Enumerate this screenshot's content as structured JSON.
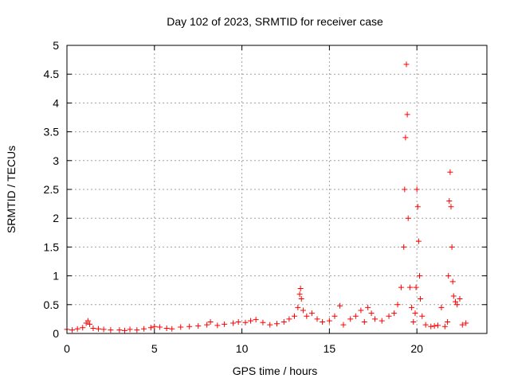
{
  "chart_data": {
    "type": "scatter",
    "title": "Day 102 of 2023, SRMTID for receiver case",
    "xlabel": "GPS time / hours",
    "ylabel": "SRMTID / TECUs",
    "xlim": [
      0,
      24
    ],
    "ylim": [
      0,
      5
    ],
    "x_ticks": [
      0,
      5,
      10,
      15,
      20
    ],
    "y_ticks": [
      0,
      0.5,
      1,
      1.5,
      2,
      2.5,
      3,
      3.5,
      4,
      4.5,
      5
    ],
    "x_tick_labels": [
      "0",
      "5",
      "10",
      "15",
      "20"
    ],
    "y_tick_labels": [
      "0",
      "0.5",
      "1",
      "1.5",
      "2",
      "2.5",
      "3",
      "3.5",
      "4",
      "4.5",
      "5"
    ],
    "grid": true,
    "marker": "+",
    "color": "#ff0000",
    "series": [
      {
        "name": "SRMTID",
        "x": [
          0.0,
          0.3,
          0.6,
          0.9,
          1.1,
          1.2,
          1.3,
          1.5,
          1.8,
          2.1,
          2.5,
          3.0,
          3.3,
          3.6,
          4.0,
          4.4,
          4.8,
          5.0,
          5.3,
          5.7,
          6.0,
          6.5,
          7.0,
          7.5,
          8.0,
          8.2,
          8.6,
          9.0,
          9.5,
          9.8,
          10.2,
          10.5,
          10.8,
          11.2,
          11.6,
          12.0,
          12.4,
          12.7,
          13.0,
          13.2,
          13.3,
          13.35,
          13.4,
          13.5,
          13.7,
          14.0,
          14.3,
          14.6,
          15.0,
          15.3,
          15.6,
          15.8,
          16.2,
          16.5,
          16.8,
          17.0,
          17.2,
          17.4,
          17.6,
          18.0,
          18.4,
          18.7,
          18.9,
          19.1,
          19.25,
          19.3,
          19.35,
          19.4,
          19.45,
          19.5,
          19.6,
          19.7,
          19.8,
          19.9,
          19.95,
          20.0,
          20.05,
          20.1,
          20.15,
          20.2,
          20.3,
          20.5,
          20.8,
          21.0,
          21.2,
          21.4,
          21.6,
          21.75,
          21.8,
          21.85,
          21.9,
          21.95,
          22.0,
          22.05,
          22.1,
          22.2,
          22.3,
          22.45,
          22.6,
          22.8
        ],
        "y": [
          0.07,
          0.06,
          0.08,
          0.1,
          0.18,
          0.22,
          0.16,
          0.09,
          0.08,
          0.07,
          0.06,
          0.06,
          0.05,
          0.07,
          0.06,
          0.08,
          0.1,
          0.12,
          0.11,
          0.09,
          0.08,
          0.11,
          0.12,
          0.13,
          0.15,
          0.2,
          0.14,
          0.16,
          0.18,
          0.2,
          0.19,
          0.22,
          0.24,
          0.19,
          0.15,
          0.17,
          0.2,
          0.25,
          0.3,
          0.45,
          0.68,
          0.78,
          0.6,
          0.4,
          0.3,
          0.35,
          0.25,
          0.2,
          0.22,
          0.3,
          0.48,
          0.15,
          0.25,
          0.3,
          0.4,
          0.2,
          0.45,
          0.35,
          0.25,
          0.22,
          0.3,
          0.35,
          0.5,
          0.8,
          1.5,
          2.5,
          3.4,
          4.67,
          3.8,
          2.0,
          0.8,
          0.45,
          0.2,
          0.35,
          0.8,
          2.5,
          2.2,
          1.6,
          1.0,
          0.6,
          0.3,
          0.15,
          0.12,
          0.13,
          0.14,
          0.45,
          0.12,
          0.2,
          1.0,
          2.3,
          2.8,
          2.2,
          1.5,
          0.9,
          0.65,
          0.55,
          0.5,
          0.6,
          0.15,
          0.18
        ]
      }
    ]
  }
}
